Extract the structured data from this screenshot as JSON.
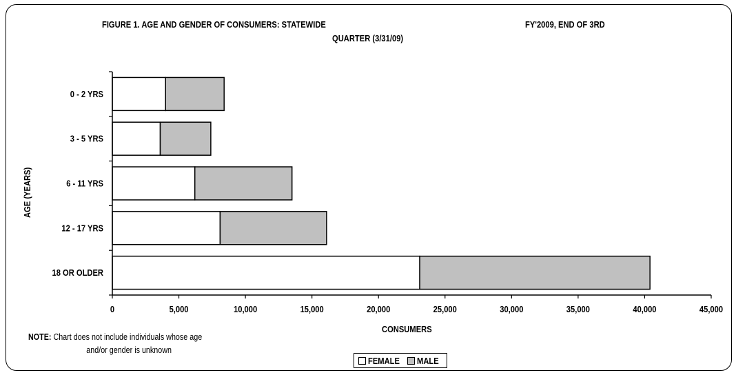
{
  "chart_data": {
    "type": "bar",
    "orientation": "horizontal",
    "stacked": true,
    "title_line1_left": "FIGURE 1. AGE AND GENDER OF CONSUMERS: STATEWIDE",
    "title_line1_right": "FY'2009, END OF 3RD",
    "title_line2": "QUARTER (3/31/09)",
    "xlabel": "CONSUMERS",
    "ylabel": "AGE (YEARS)",
    "categories": [
      "0 - 2 YRS",
      "3 - 5 YRS",
      "6 - 11 YRS",
      "12 - 17 YRS",
      "18 OR OLDER"
    ],
    "series": [
      {
        "name": "FEMALE",
        "color": "#ffffff",
        "values": [
          4000,
          3600,
          6200,
          8100,
          23100
        ]
      },
      {
        "name": "MALE",
        "color": "#c0c0c0",
        "values": [
          4400,
          3800,
          7300,
          8000,
          17300
        ]
      }
    ],
    "xlim": [
      0,
      45000
    ],
    "xticks": [
      0,
      5000,
      10000,
      15000,
      20000,
      25000,
      30000,
      35000,
      40000,
      45000
    ],
    "xtick_labels": [
      "0",
      "5,000",
      "10,000",
      "15,000",
      "20,000",
      "25,000",
      "30,000",
      "35,000",
      "40,000",
      "45,000"
    ],
    "grid": false,
    "legend_position": "bottom"
  },
  "note": {
    "label": "NOTE:",
    "line1": "Chart does not include individuals whose age",
    "line2": "and/or gender is unknown"
  }
}
